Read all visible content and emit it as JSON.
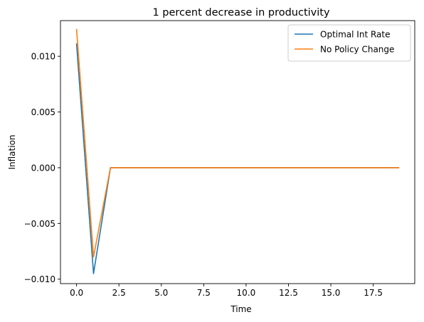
{
  "chart_data": {
    "type": "line",
    "title": "1 percent decrease in productivity",
    "xlabel": "Time",
    "ylabel": "Inflation",
    "xlim": [
      -0.95,
      19.95
    ],
    "ylim": [
      -0.0104,
      0.0132
    ],
    "xticks": [
      0.0,
      2.5,
      5.0,
      7.5,
      10.0,
      12.5,
      15.0,
      17.5
    ],
    "xtick_labels": [
      "0.0",
      "2.5",
      "5.0",
      "7.5",
      "10.0",
      "12.5",
      "15.0",
      "17.5"
    ],
    "yticks": [
      -0.01,
      -0.005,
      0.0,
      0.005,
      0.01
    ],
    "ytick_labels": [
      "−0.010",
      "−0.005",
      "0.000",
      "0.005",
      "0.010"
    ],
    "grid": false,
    "legend": "top-right",
    "x": [
      0,
      1,
      2,
      3,
      4,
      5,
      6,
      7,
      8,
      9,
      10,
      11,
      12,
      13,
      14,
      15,
      16,
      17,
      18,
      19
    ],
    "series": [
      {
        "name": "Optimal Int Rate",
        "color": "#1f77b4",
        "values": [
          0.0111,
          -0.0095,
          0,
          0,
          0,
          0,
          0,
          0,
          0,
          0,
          0,
          0,
          0,
          0,
          0,
          0,
          0,
          0,
          0,
          0
        ]
      },
      {
        "name": "No Policy Change",
        "color": "#ff7f0e",
        "values": [
          0.0124,
          -0.008,
          0,
          0,
          0,
          0,
          0,
          0,
          0,
          0,
          0,
          0,
          0,
          0,
          0,
          0,
          0,
          0,
          0,
          0
        ]
      }
    ]
  }
}
